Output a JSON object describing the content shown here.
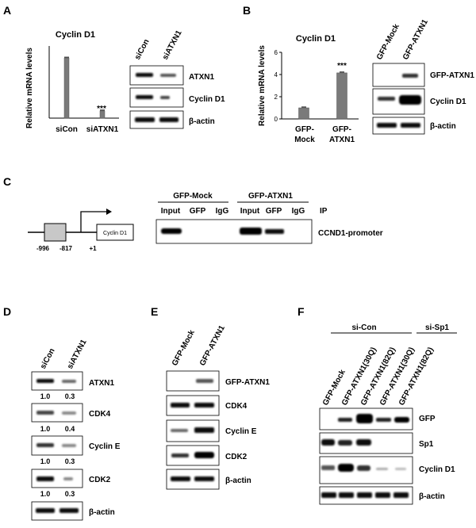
{
  "panel_labels": {
    "a": "A",
    "b": "B",
    "c": "C",
    "d": "D",
    "e": "E",
    "f": "F"
  },
  "panelA": {
    "chart_title": "Cyclin D1",
    "ylabel": "Relative mRNA levels",
    "categories": [
      "siCon",
      "siATXN1"
    ],
    "sig": "***",
    "lanes": [
      "siCon",
      "siATXN1"
    ],
    "blots": [
      "ATXN1",
      "Cyclin D1",
      "β-actin"
    ]
  },
  "panelB": {
    "chart_title": "Cyclin D1",
    "ylabel": "Relative mRNA levels",
    "yticks": [
      "0",
      "2",
      "4",
      "6"
    ],
    "cat1_line1": "GFP-",
    "cat1_line2": "Mock",
    "cat2_line1": "GFP-",
    "cat2_line2": "ATXN1",
    "sig": "***",
    "lanes": [
      "GFP-Mock",
      "GFP-ATXN1"
    ],
    "blots": [
      "GFP-ATXN1",
      "Cyclin D1",
      "β-actin"
    ]
  },
  "panelC": {
    "positions": [
      "-996",
      "-817",
      "+1"
    ],
    "gene_box": "Cyclin D1",
    "group1": "GFP-Mock",
    "group2": "GFP-ATXN1",
    "lanes": [
      "Input",
      "GFP",
      "IgG",
      "Input",
      "GFP",
      "IgG"
    ],
    "ip": "IP",
    "blot": "CCND1-promoter"
  },
  "panelD": {
    "lanes": [
      "siCon",
      "siATXN1"
    ],
    "blots": [
      "ATXN1",
      "CDK4",
      "Cyclin E",
      "CDK2",
      "β-actin"
    ],
    "quant": [
      [
        "1.0",
        "0.3"
      ],
      [
        "1.0",
        "0.4"
      ],
      [
        "1.0",
        "0.3"
      ],
      [
        "1.0",
        "0.3"
      ]
    ]
  },
  "panelE": {
    "lanes": [
      "GFP-Mock",
      "GFP-ATXN1"
    ],
    "blots": [
      "GFP-ATXN1",
      "CDK4",
      "Cyclin E",
      "CDK2",
      "β-actin"
    ]
  },
  "panelF": {
    "group1": "si-Con",
    "group2": "si-Sp1",
    "lanes": [
      "GFP-Mock",
      "GFP-ATXN1(30Q)",
      "GFP-ATXN1(82Q)",
      "GFP-ATXN1(30Q)",
      "GFP-ATXN1(82Q)"
    ],
    "blots": [
      "GFP",
      "Sp1",
      "Cyclin D1",
      "β-actin"
    ]
  },
  "chart_data": [
    {
      "type": "bar",
      "title": "Cyclin D1",
      "ylabel": "Relative mRNA levels",
      "categories": [
        "siCon",
        "siATXN1"
      ],
      "values": [
        1.0,
        0.12
      ],
      "ylim": [
        0,
        1.2
      ]
    },
    {
      "type": "bar",
      "title": "Cyclin D1",
      "ylabel": "Relative mRNA levels",
      "categories": [
        "GFP-Mock",
        "GFP-ATXN1"
      ],
      "values": [
        1.0,
        4.15
      ],
      "ylim": [
        0,
        6
      ]
    }
  ]
}
